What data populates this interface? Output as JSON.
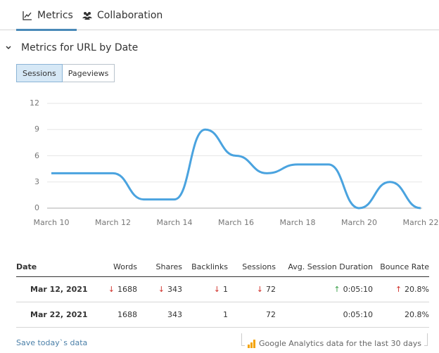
{
  "tabs": [
    {
      "label": "Metrics",
      "icon": "line-chart-icon",
      "active": true
    },
    {
      "label": "Collaboration",
      "icon": "users-icon",
      "active": false
    }
  ],
  "section": {
    "title": "Metrics for URL by Date",
    "expanded": true
  },
  "toggle": {
    "options": [
      "Sessions",
      "Pageviews"
    ],
    "selected": "Sessions"
  },
  "colors": {
    "accent": "#4a8ab8",
    "line": "#4aa3df",
    "down": "#d0302a",
    "up_good": "#3aa04a",
    "link": "#4a7fa8",
    "ga_icon": "#f4a300"
  },
  "chart_data": {
    "type": "line",
    "title": "Sessions",
    "x": [
      "March 10",
      "March 11",
      "March 12",
      "March 13",
      "March 14",
      "March 15",
      "March 16",
      "March 17",
      "March 18",
      "March 19",
      "March 20",
      "March 21",
      "March 22"
    ],
    "series": [
      {
        "name": "Sessions",
        "values": [
          4,
          4,
          4,
          1,
          1,
          9,
          6,
          4,
          5,
          5,
          0,
          3,
          0
        ]
      }
    ],
    "xticks": [
      "March 10",
      "March 12",
      "March 14",
      "March 16",
      "March 18",
      "March 20",
      "March 22"
    ],
    "yticks": [
      0,
      3,
      6,
      9,
      12
    ],
    "ylim": [
      0,
      12
    ],
    "grid": true,
    "xlabel": "",
    "ylabel": ""
  },
  "table": {
    "headers": [
      "Date",
      "Words",
      "Shares",
      "Backlinks",
      "Sessions",
      "Avg. Session Duration",
      "Bounce Rate"
    ],
    "rows": [
      {
        "date": "Mar 12, 2021",
        "words": "1688",
        "shares": "343",
        "backlinks": "1",
        "sessions": "72",
        "duration": "0:05:10",
        "bounce": "20.8%",
        "trends": {
          "words": "down",
          "shares": "down",
          "backlinks": "down",
          "sessions": "down",
          "duration": "up",
          "bounce": "up"
        }
      },
      {
        "date": "Mar 22, 2021",
        "words": "1688",
        "shares": "343",
        "backlinks": "1",
        "sessions": "72",
        "duration": "0:05:10",
        "bounce": "20.8%"
      }
    ]
  },
  "footer": {
    "save_link": "Save today`s data",
    "ga_note": "Google Analytics data for the last 30 days"
  },
  "arrows": {
    "down": "↓",
    "up": "↑"
  }
}
